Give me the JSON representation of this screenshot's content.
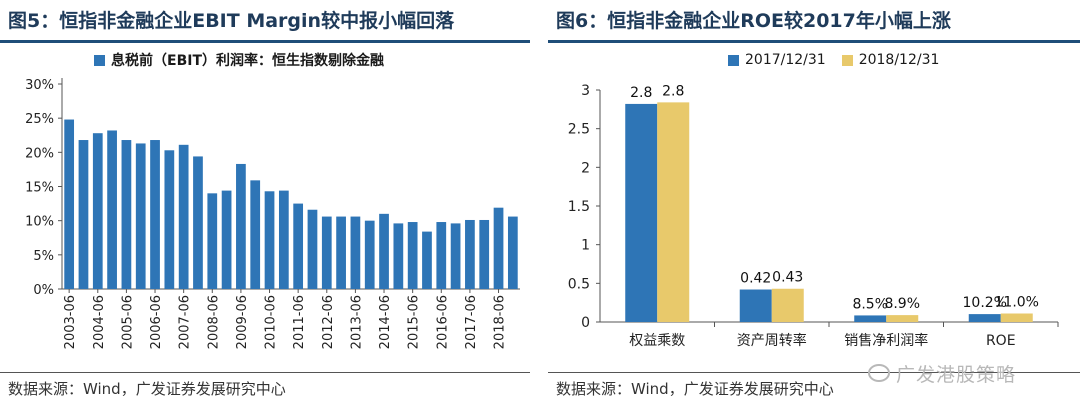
{
  "watermark": "广发港股策略",
  "chart_data": [
    {
      "type": "bar",
      "title": "图5：恒指非金融企业EBIT Margin较中报小幅回落",
      "source": "数据来源：Wind，广发证券发展研究中心",
      "series": [
        {
          "name": "息税前（EBIT）利润率：恒生指数剔除金融",
          "color": "#2e75b6",
          "values": [
            24.8,
            21.8,
            22.8,
            23.2,
            21.8,
            21.3,
            21.8,
            20.3,
            21.1,
            19.4,
            14.0,
            14.4,
            18.3,
            15.9,
            14.3,
            14.4,
            12.5,
            11.6,
            10.6,
            10.6,
            10.6,
            10.0,
            11.0,
            9.6,
            9.8,
            8.4,
            9.8,
            9.6,
            10.1,
            10.1,
            11.9,
            10.6
          ]
        }
      ],
      "xtick_labels": [
        "2003-06",
        "2004-06",
        "2005-06",
        "2006-06",
        "2007-06",
        "2008-06",
        "2009-06",
        "2010-06",
        "2011-06",
        "2012-06",
        "2013-06",
        "2014-06",
        "2015-06",
        "2016-06",
        "2017-06",
        "2018-06"
      ],
      "yticks": [
        "0%",
        "5%",
        "10%",
        "15%",
        "20%",
        "25%",
        "30%"
      ],
      "ylim": [
        0,
        30
      ]
    },
    {
      "type": "bar",
      "title": "图6：恒指非金融企业ROE较2017年小幅上涨",
      "source": "数据来源：Wind，广发证券发展研究中心",
      "categories": [
        "权益乘数",
        "资产周转率",
        "销售净利润率",
        "ROE"
      ],
      "series": [
        {
          "name": "2017/12/31",
          "color": "#2e75b6",
          "values": [
            2.82,
            0.42,
            0.085,
            0.102
          ],
          "labels": [
            "2.8",
            "0.42",
            "8.5%",
            "10.2%"
          ]
        },
        {
          "name": "2018/12/31",
          "color": "#e8c96b",
          "values": [
            2.84,
            0.43,
            0.089,
            0.11
          ],
          "labels": [
            "2.8",
            "0.43",
            "8.9%",
            "11.0%"
          ]
        }
      ],
      "yticks": [
        "0",
        "0.5",
        "1",
        "1.5",
        "2",
        "2.5",
        "3"
      ],
      "ylim": [
        0,
        3
      ]
    }
  ]
}
